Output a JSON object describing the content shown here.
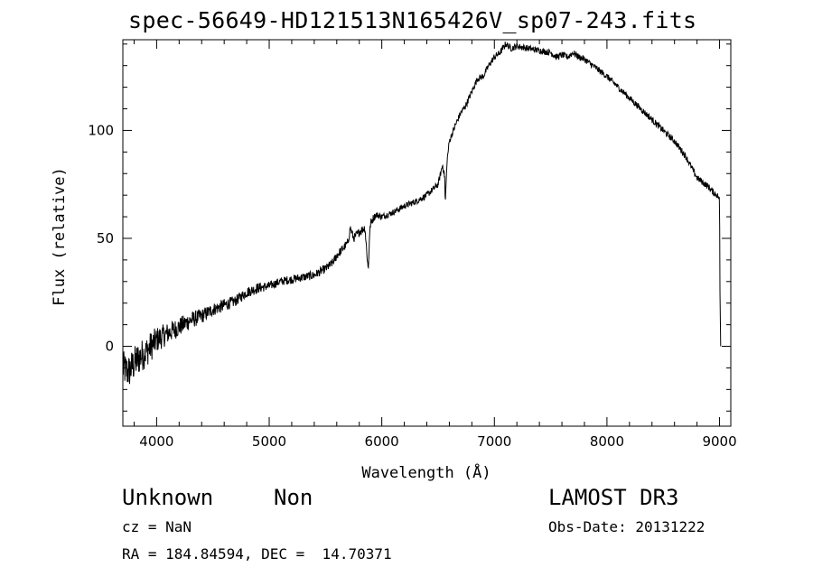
{
  "chart_data": {
    "type": "line",
    "title": "spec-56649-HD121513N165426V_sp07-243.fits",
    "xlabel": "Wavelength (Å)",
    "ylabel": "Flux (relative)",
    "xlim": [
      3700,
      9100
    ],
    "ylim": [
      -37,
      142
    ],
    "xticks": [
      4000,
      5000,
      6000,
      7000,
      8000,
      9000
    ],
    "xtick_labels": [
      "4000",
      "5000",
      "6000",
      "7000",
      "8000",
      "9000"
    ],
    "yticks": [
      0,
      50,
      100
    ],
    "ytick_labels": [
      "0",
      "50",
      "100"
    ],
    "grid": false,
    "series": [
      {
        "name": "flux",
        "x": [
          3700,
          3750,
          3800,
          3850,
          3900,
          3950,
          4000,
          4100,
          4200,
          4300,
          4400,
          4500,
          4600,
          4700,
          4800,
          4900,
          5000,
          5100,
          5200,
          5300,
          5400,
          5500,
          5550,
          5580,
          5600,
          5650,
          5700,
          5720,
          5750,
          5800,
          5850,
          5880,
          5890,
          5900,
          5920,
          5950,
          6000,
          6100,
          6200,
          6300,
          6400,
          6500,
          6540,
          6560,
          6563,
          6580,
          6600,
          6650,
          6700,
          6750,
          6800,
          6850,
          6900,
          6950,
          7000,
          7050,
          7100,
          7150,
          7200,
          7300,
          7400,
          7500,
          7550,
          7600,
          7650,
          7700,
          7750,
          7800,
          7850,
          7900,
          8000,
          8100,
          8200,
          8300,
          8400,
          8500,
          8600,
          8700,
          8750,
          8800,
          8850,
          8900,
          8950,
          8980,
          9000,
          9003,
          9010
        ],
        "values": [
          -10,
          -12,
          -8,
          -5,
          -3,
          0,
          3,
          6,
          9,
          12,
          14,
          17,
          19,
          21,
          25,
          27,
          28,
          30,
          31,
          32,
          33,
          36,
          38,
          40,
          42,
          45,
          48,
          55,
          50,
          53,
          55,
          35,
          50,
          57,
          59,
          61,
          60,
          62,
          65,
          67,
          70,
          75,
          84,
          78,
          65,
          86,
          95,
          102,
          108,
          112,
          118,
          124,
          125,
          130,
          134,
          136,
          140,
          138,
          139,
          138,
          137,
          136,
          134,
          135,
          134,
          136,
          134,
          133,
          131,
          129,
          125,
          120,
          115,
          110,
          105,
          100,
          95,
          88,
          83,
          78,
          76,
          74,
          71,
          70,
          68,
          30,
          0
        ],
        "noise": [
          8,
          8,
          8,
          8,
          7,
          7,
          6,
          5,
          4.5,
          4,
          3.5,
          3,
          3,
          2.5,
          2.5,
          2.5,
          2,
          2,
          2,
          2,
          2,
          2,
          2,
          2,
          2,
          2,
          2,
          2,
          2,
          2,
          2,
          2,
          2,
          2,
          2,
          1.5,
          1.5,
          1.5,
          1.5,
          1.5,
          1.5,
          1.5,
          1.5,
          1.5,
          1.5,
          1.5,
          1.5,
          1.5,
          1.5,
          1.5,
          1.5,
          1.5,
          1.5,
          1.5,
          1.5,
          1.5,
          1.5,
          1.5,
          1.5,
          1.5,
          1.5,
          1.5,
          1.5,
          1.5,
          1.5,
          1.5,
          1.5,
          1.5,
          1.5,
          1.5,
          1.5,
          1.5,
          1.5,
          1.5,
          1.5,
          1.5,
          1.5,
          1.5,
          1.5,
          1.5,
          1.5,
          1.5,
          1.5,
          1.5,
          1,
          0,
          0
        ]
      }
    ]
  },
  "info": {
    "class": "Unknown",
    "subclass": "Non",
    "survey": "LAMOST DR3",
    "cz": "cz = NaN",
    "obs_date": "Obs-Date: 20131222",
    "radec": "RA = 184.84594, DEC =  14.70371"
  }
}
